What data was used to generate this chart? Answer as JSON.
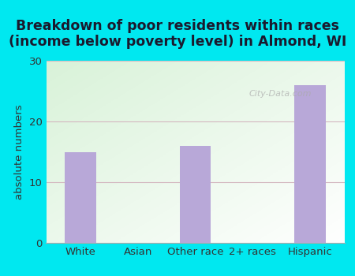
{
  "categories": [
    "White",
    "Asian",
    "Other race",
    "2+ races",
    "Hispanic"
  ],
  "values": [
    15,
    0,
    16,
    0,
    26
  ],
  "bar_color": "#b8a8d8",
  "title_line1": "Breakdown of poor residents within races",
  "title_line2": "(income below poverty level) in Almond, WI",
  "ylabel": "absolute numbers",
  "ylim": [
    0,
    30
  ],
  "yticks": [
    0,
    10,
    20,
    30
  ],
  "grid_color": "#d4b8c0",
  "bg_color_fig": "#00e8f0",
  "title_color": "#1a1a2e",
  "title_fontsize": 12.5,
  "axis_fontsize": 9.5,
  "watermark": "City-Data.com"
}
